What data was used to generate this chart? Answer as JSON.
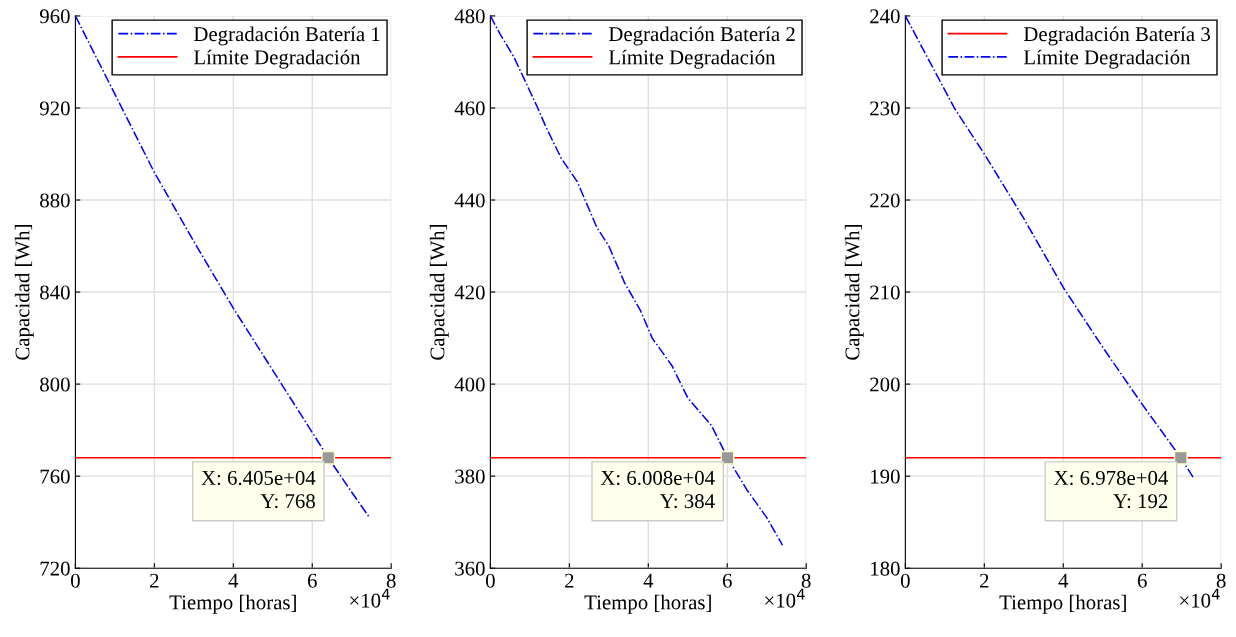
{
  "chart_data": [
    {
      "type": "line",
      "xlabel": "Tiempo [horas]",
      "ylabel": "Capacidad [Wh]",
      "xlim": [
        0,
        8
      ],
      "ylim": [
        720,
        960
      ],
      "xticks": [
        0,
        2,
        4,
        6,
        8
      ],
      "yticks": [
        720,
        760,
        800,
        840,
        880,
        920,
        960
      ],
      "grid": true,
      "legend": "top right",
      "series": [
        {
          "name": "Degradación Batería 1",
          "color": "#0000ff",
          "line_style": "dashdot",
          "x": [
            0,
            1,
            2,
            3,
            4,
            5,
            6,
            6.405,
            7,
            7.45
          ],
          "values": [
            960,
            926,
            892,
            862,
            833,
            806,
            779,
            768,
            753,
            742
          ]
        },
        {
          "name": "Límite Degradación",
          "color": "#ff0000",
          "line_style": "solid",
          "x": [
            0,
            8
          ],
          "values": [
            768,
            768
          ]
        }
      ],
      "annotations": [
        {
          "text": "X: 6.405e+04\nY: 768",
          "x": 6.405,
          "y": 768
        },
        "×10$^{4}$"
      ]
    },
    {
      "type": "line",
      "xlabel": "Tiempo [horas]",
      "ylabel": "Capacidad [Wh]",
      "xlim": [
        0,
        8
      ],
      "ylim": [
        360,
        480
      ],
      "xticks": [
        0,
        2,
        4,
        6,
        8
      ],
      "yticks": [
        360,
        380,
        400,
        420,
        440,
        460,
        480
      ],
      "grid": true,
      "legend": "top right",
      "series": [
        {
          "name": "Degradación Batería 2",
          "color": "#0000ff",
          "line_style": "dashdot",
          "x": [
            0,
            0.25,
            0.6,
            1.2,
            1.4,
            1.8,
            2.2,
            2.7,
            3.0,
            3.4,
            3.8,
            4.1,
            4.6,
            5.0,
            5.4,
            5.6,
            6.008,
            6.5,
            7.0,
            7.4
          ],
          "values": [
            480,
            476,
            471,
            460,
            456,
            449,
            444,
            434,
            430,
            422,
            416,
            410,
            404,
            397,
            393,
            391,
            384,
            377,
            371,
            365
          ]
        },
        {
          "name": "Límite Degradación",
          "color": "#ff0000",
          "line_style": "solid",
          "x": [
            0,
            8
          ],
          "values": [
            384,
            384
          ]
        }
      ],
      "annotations": [
        {
          "text": "X: 6.008e+04\nY: 384",
          "x": 6.008,
          "y": 384
        },
        "×10$^{4}$"
      ]
    },
    {
      "type": "line",
      "xlabel": "Tiempo [horas]",
      "ylabel": "Capacidad [Wh]",
      "xlim": [
        0,
        8
      ],
      "ylim": [
        180,
        240
      ],
      "xticks": [
        0,
        2,
        4,
        6,
        8
      ],
      "yticks": [
        180,
        190,
        200,
        210,
        220,
        230,
        240
      ],
      "grid": true,
      "legend": "top right",
      "series": [
        {
          "name": "Degradación Batería 3",
          "color": "#ff0000",
          "line_style": "solid",
          "x": [
            0,
            8
          ],
          "values": [
            192,
            192
          ]
        },
        {
          "name": "Límite Degradación",
          "color": "#0000ff",
          "line_style": "dashdot",
          "x": [
            0,
            1.24,
            2,
            3,
            4,
            5,
            6,
            6.978,
            7.3
          ],
          "values": [
            240,
            230,
            225,
            218,
            210.5,
            204,
            197.8,
            192,
            189.8
          ]
        }
      ],
      "annotations": [
        {
          "text": "X: 6.978e+04\nY: 192",
          "x": 6.978,
          "y": 192
        },
        "×10$^{4}$"
      ]
    }
  ]
}
